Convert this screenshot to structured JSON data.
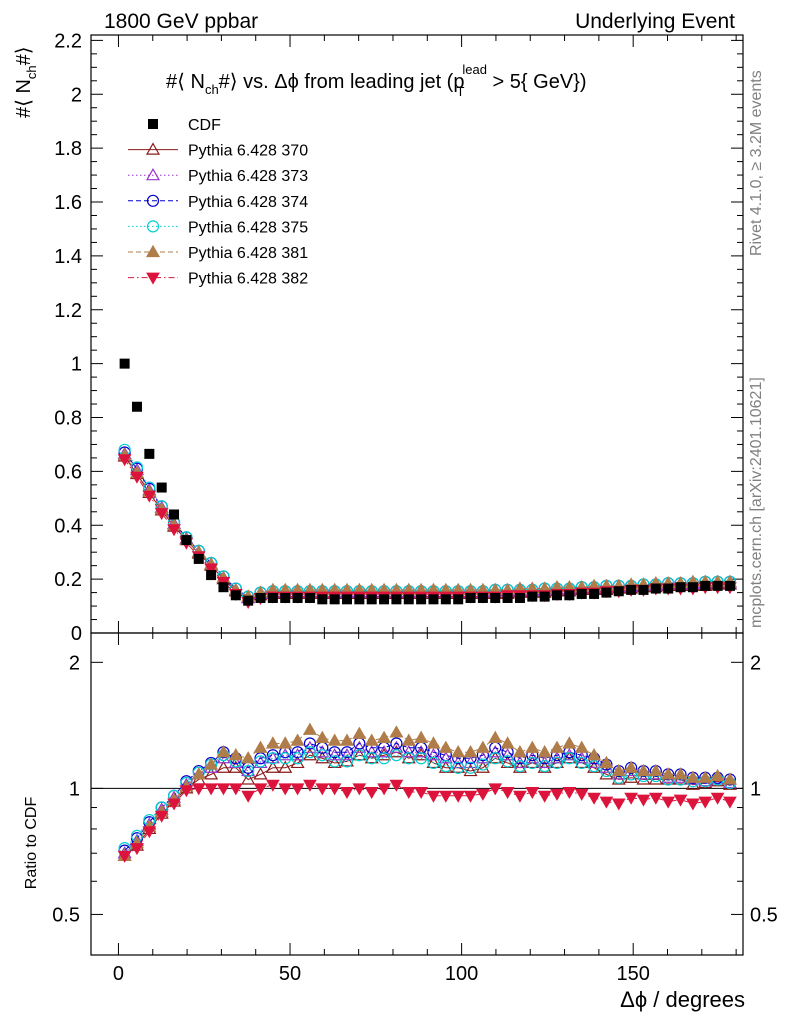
{
  "header": {
    "left_label": "1800 GeV ppbar",
    "right_label": "Underlying Event"
  },
  "side_labels": {
    "rivet": "Rivet 4.1.0, ≥ 3.2M events",
    "mcplots": "mcplots.cern.ch [arXiv:2401.10621]"
  },
  "chart_data": {
    "type": "scatter",
    "title": "#⟨ N_ch#⟩ vs. Δϕ from leading jet  (p_T^lead > 5{ GeV})",
    "title_parts": {
      "a": "#⟨ N",
      "sub_ch": "ch",
      "b": "#⟩ vs. Δϕ from leading jet  (p",
      "sub_t": "T",
      "sup_lead": "lead",
      "c": " > 5{ GeV}",
      "d": ")"
    },
    "xlabel": "Δϕ / degrees",
    "ylabel": {
      "a": "#⟨ N",
      "sub": "ch",
      "b": "#⟩"
    },
    "ratio_ylabel": "Ratio to CDF",
    "xlim": [
      -8,
      182
    ],
    "ylim": [
      0,
      2.22
    ],
    "ratio_ylim": [
      0.4,
      2.35
    ],
    "x_ticks": [
      0,
      50,
      100,
      150
    ],
    "y_ticks": [
      0,
      0.2,
      0.4,
      0.6,
      0.8,
      1,
      1.2,
      1.4,
      1.6,
      1.8,
      2,
      2.2
    ],
    "y_tick_labels": [
      "0",
      "0.2",
      "0.4",
      "0.6",
      "0.8",
      "1",
      "1.2",
      "1.4",
      "1.6",
      "1.8",
      "2",
      "2.2"
    ],
    "ratio_ticks": [
      0.5,
      1,
      2
    ],
    "ratio_tick_labels": [
      "0.5",
      "1",
      "2"
    ],
    "x": [
      1.8,
      5.4,
      9.0,
      12.6,
      16.2,
      19.8,
      23.4,
      27.0,
      30.6,
      34.2,
      37.8,
      41.4,
      45.0,
      48.6,
      52.2,
      55.8,
      59.4,
      63.0,
      66.6,
      70.2,
      73.8,
      77.4,
      81.0,
      84.6,
      88.2,
      91.8,
      95.4,
      99.0,
      102.6,
      106.2,
      109.8,
      113.4,
      117.0,
      120.6,
      124.2,
      127.8,
      131.4,
      135.0,
      138.6,
      142.2,
      145.8,
      149.4,
      153.0,
      156.6,
      160.2,
      163.8,
      167.4,
      171.0,
      174.6,
      178.2
    ],
    "series": [
      {
        "name": "CDF",
        "color": "#000000",
        "marker": "square",
        "line": "none",
        "values": [
          1.0,
          0.84,
          0.665,
          0.54,
          0.44,
          0.345,
          0.275,
          0.215,
          0.17,
          0.14,
          0.12,
          0.13,
          0.13,
          0.13,
          0.13,
          0.13,
          0.125,
          0.125,
          0.125,
          0.125,
          0.125,
          0.125,
          0.125,
          0.125,
          0.125,
          0.125,
          0.125,
          0.125,
          0.13,
          0.13,
          0.13,
          0.13,
          0.13,
          0.135,
          0.135,
          0.14,
          0.14,
          0.145,
          0.145,
          0.15,
          0.155,
          0.16,
          0.16,
          0.165,
          0.165,
          0.17,
          0.17,
          0.175,
          0.175,
          0.175
        ],
        "ratio": [
          1,
          1,
          1,
          1,
          1,
          1,
          1,
          1,
          1,
          1,
          1,
          1,
          1,
          1,
          1,
          1,
          1,
          1,
          1,
          1,
          1,
          1,
          1,
          1,
          1,
          1,
          1,
          1,
          1,
          1,
          1,
          1,
          1,
          1,
          1,
          1,
          1,
          1,
          1,
          1,
          1,
          1,
          1,
          1,
          1,
          1,
          1,
          1,
          1,
          1
        ]
      },
      {
        "name": "Pythia 6.428 370",
        "color": "#8b1a1a",
        "marker": "triangle-open",
        "line": "solid",
        "values": [
          0.655,
          0.59,
          0.52,
          0.455,
          0.395,
          0.345,
          0.295,
          0.25,
          0.2,
          0.155,
          0.13,
          0.14,
          0.145,
          0.145,
          0.145,
          0.145,
          0.145,
          0.145,
          0.145,
          0.145,
          0.145,
          0.145,
          0.145,
          0.145,
          0.145,
          0.145,
          0.145,
          0.145,
          0.145,
          0.145,
          0.145,
          0.145,
          0.15,
          0.15,
          0.15,
          0.155,
          0.155,
          0.16,
          0.16,
          0.16,
          0.165,
          0.165,
          0.17,
          0.17,
          0.175,
          0.175,
          0.175,
          0.175,
          0.18,
          0.18
        ],
        "ratio": [
          0.69,
          0.73,
          0.8,
          0.87,
          0.93,
          1.0,
          1.05,
          1.08,
          1.12,
          1.12,
          1.05,
          1.08,
          1.12,
          1.12,
          1.15,
          1.2,
          1.18,
          1.15,
          1.16,
          1.2,
          1.18,
          1.2,
          1.22,
          1.18,
          1.2,
          1.15,
          1.12,
          1.12,
          1.1,
          1.12,
          1.18,
          1.15,
          1.12,
          1.15,
          1.12,
          1.15,
          1.18,
          1.15,
          1.12,
          1.08,
          1.05,
          1.06,
          1.05,
          1.05,
          1.05,
          1.05,
          1.02,
          1.03,
          1.04,
          1.02
        ]
      },
      {
        "name": "Pythia 6.428 373",
        "color": "#9932cc",
        "marker": "triangle-open",
        "line": "dotted",
        "values": [
          0.665,
          0.605,
          0.53,
          0.465,
          0.405,
          0.35,
          0.3,
          0.255,
          0.205,
          0.16,
          0.13,
          0.145,
          0.15,
          0.15,
          0.15,
          0.15,
          0.15,
          0.15,
          0.15,
          0.15,
          0.15,
          0.15,
          0.15,
          0.15,
          0.15,
          0.15,
          0.15,
          0.15,
          0.15,
          0.15,
          0.155,
          0.155,
          0.155,
          0.155,
          0.16,
          0.16,
          0.16,
          0.165,
          0.165,
          0.17,
          0.17,
          0.17,
          0.175,
          0.175,
          0.18,
          0.18,
          0.18,
          0.185,
          0.185,
          0.185
        ],
        "ratio": [
          0.7,
          0.75,
          0.82,
          0.89,
          0.95,
          1.02,
          1.08,
          1.12,
          1.18,
          1.15,
          1.1,
          1.15,
          1.18,
          1.2,
          1.2,
          1.25,
          1.22,
          1.2,
          1.2,
          1.25,
          1.22,
          1.22,
          1.25,
          1.22,
          1.22,
          1.2,
          1.18,
          1.15,
          1.15,
          1.18,
          1.22,
          1.2,
          1.15,
          1.18,
          1.15,
          1.18,
          1.2,
          1.18,
          1.15,
          1.12,
          1.08,
          1.1,
          1.08,
          1.08,
          1.06,
          1.06,
          1.05,
          1.04,
          1.05,
          1.03
        ]
      },
      {
        "name": "Pythia 6.428 374",
        "color": "#0000cd",
        "marker": "circle-open",
        "line": "dashed",
        "values": [
          0.67,
          0.61,
          0.535,
          0.47,
          0.41,
          0.355,
          0.305,
          0.26,
          0.21,
          0.165,
          0.135,
          0.15,
          0.155,
          0.155,
          0.155,
          0.155,
          0.155,
          0.155,
          0.155,
          0.155,
          0.155,
          0.155,
          0.155,
          0.155,
          0.155,
          0.155,
          0.155,
          0.155,
          0.155,
          0.155,
          0.16,
          0.16,
          0.16,
          0.16,
          0.165,
          0.165,
          0.165,
          0.17,
          0.17,
          0.175,
          0.175,
          0.175,
          0.18,
          0.18,
          0.185,
          0.185,
          0.185,
          0.19,
          0.19,
          0.19
        ],
        "ratio": [
          0.71,
          0.76,
          0.83,
          0.9,
          0.96,
          1.04,
          1.1,
          1.15,
          1.22,
          1.18,
          1.12,
          1.18,
          1.2,
          1.22,
          1.22,
          1.28,
          1.25,
          1.22,
          1.22,
          1.28,
          1.25,
          1.25,
          1.28,
          1.25,
          1.25,
          1.22,
          1.2,
          1.18,
          1.18,
          1.2,
          1.25,
          1.22,
          1.18,
          1.2,
          1.18,
          1.2,
          1.22,
          1.2,
          1.18,
          1.14,
          1.1,
          1.12,
          1.1,
          1.1,
          1.08,
          1.08,
          1.06,
          1.06,
          1.06,
          1.05
        ]
      },
      {
        "name": "Pythia 6.428 375",
        "color": "#00ced1",
        "marker": "circle-open",
        "line": "dotted",
        "values": [
          0.68,
          0.615,
          0.54,
          0.47,
          0.41,
          0.355,
          0.305,
          0.26,
          0.21,
          0.165,
          0.135,
          0.15,
          0.155,
          0.155,
          0.155,
          0.155,
          0.155,
          0.155,
          0.155,
          0.155,
          0.155,
          0.155,
          0.155,
          0.155,
          0.155,
          0.155,
          0.155,
          0.155,
          0.155,
          0.155,
          0.16,
          0.16,
          0.16,
          0.16,
          0.165,
          0.165,
          0.165,
          0.17,
          0.17,
          0.175,
          0.175,
          0.175,
          0.18,
          0.18,
          0.185,
          0.185,
          0.185,
          0.19,
          0.19,
          0.19
        ],
        "ratio": [
          0.72,
          0.77,
          0.84,
          0.9,
          0.96,
          1.03,
          1.09,
          1.14,
          1.2,
          1.16,
          1.1,
          1.16,
          1.18,
          1.18,
          1.18,
          1.22,
          1.2,
          1.16,
          1.16,
          1.2,
          1.18,
          1.18,
          1.2,
          1.18,
          1.18,
          1.15,
          1.13,
          1.12,
          1.12,
          1.14,
          1.18,
          1.16,
          1.13,
          1.15,
          1.13,
          1.15,
          1.18,
          1.15,
          1.13,
          1.1,
          1.06,
          1.08,
          1.07,
          1.07,
          1.05,
          1.05,
          1.04,
          1.04,
          1.05,
          1.03
        ]
      },
      {
        "name": "Pythia 6.428 381",
        "color": "#b07d4a",
        "marker": "triangle-filled",
        "line": "dashed",
        "values": [
          0.66,
          0.595,
          0.525,
          0.46,
          0.4,
          0.345,
          0.3,
          0.255,
          0.205,
          0.16,
          0.135,
          0.15,
          0.16,
          0.16,
          0.16,
          0.16,
          0.16,
          0.16,
          0.16,
          0.16,
          0.16,
          0.16,
          0.16,
          0.16,
          0.16,
          0.16,
          0.16,
          0.16,
          0.16,
          0.16,
          0.16,
          0.16,
          0.165,
          0.165,
          0.165,
          0.17,
          0.17,
          0.17,
          0.175,
          0.175,
          0.175,
          0.18,
          0.18,
          0.185,
          0.185,
          0.185,
          0.19,
          0.19,
          0.19,
          0.19
        ],
        "ratio": [
          0.69,
          0.74,
          0.81,
          0.88,
          0.94,
          1.01,
          1.08,
          1.14,
          1.22,
          1.2,
          1.18,
          1.25,
          1.28,
          1.28,
          1.3,
          1.38,
          1.32,
          1.3,
          1.3,
          1.35,
          1.3,
          1.32,
          1.36,
          1.3,
          1.32,
          1.28,
          1.25,
          1.22,
          1.22,
          1.25,
          1.32,
          1.28,
          1.22,
          1.25,
          1.22,
          1.25,
          1.28,
          1.25,
          1.2,
          1.15,
          1.1,
          1.12,
          1.1,
          1.1,
          1.08,
          1.08,
          1.06,
          1.06,
          1.07,
          1.05
        ]
      },
      {
        "name": "Pythia 6.428 382",
        "color": "#dc143c",
        "marker": "triangle-down-filled",
        "line": "dashdot",
        "values": [
          0.645,
          0.58,
          0.51,
          0.445,
          0.385,
          0.335,
          0.285,
          0.24,
          0.19,
          0.145,
          0.115,
          0.13,
          0.135,
          0.135,
          0.135,
          0.135,
          0.135,
          0.135,
          0.135,
          0.135,
          0.135,
          0.135,
          0.135,
          0.135,
          0.135,
          0.135,
          0.135,
          0.135,
          0.135,
          0.135,
          0.135,
          0.14,
          0.14,
          0.14,
          0.14,
          0.145,
          0.145,
          0.15,
          0.15,
          0.155,
          0.155,
          0.16,
          0.16,
          0.165,
          0.165,
          0.165,
          0.165,
          0.17,
          0.17,
          0.17
        ],
        "ratio": [
          0.69,
          0.72,
          0.79,
          0.86,
          0.92,
          0.99,
          1.0,
          1.0,
          1.0,
          1.0,
          0.96,
          1.0,
          1.02,
          1.0,
          1.0,
          1.02,
          1.0,
          1.0,
          0.98,
          1.0,
          0.98,
          1.0,
          1.02,
          0.98,
          0.98,
          0.96,
          0.96,
          0.96,
          0.96,
          0.97,
          1.0,
          0.98,
          0.96,
          0.98,
          0.96,
          0.97,
          0.98,
          0.97,
          0.95,
          0.93,
          0.92,
          0.95,
          0.94,
          0.95,
          0.93,
          0.94,
          0.92,
          0.93,
          0.95,
          0.93
        ]
      }
    ]
  }
}
